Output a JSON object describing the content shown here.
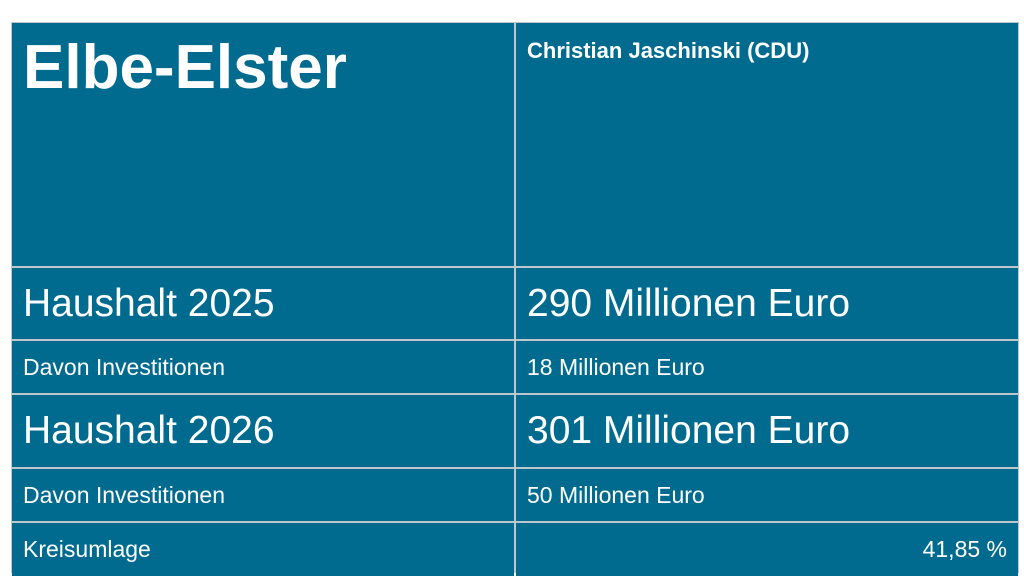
{
  "title": "Elbe-Elster",
  "person": "Christian Jaschinski (CDU)",
  "rows": [
    {
      "label": "Haushalt 2025",
      "value": "290 Millionen Euro"
    },
    {
      "label": "Davon Investitionen",
      "value": "18 Millionen Euro"
    },
    {
      "label": "Haushalt 2026",
      "value": "301 Millionen Euro"
    },
    {
      "label": "Davon Investitionen",
      "value": "50 Millionen Euro"
    },
    {
      "label": "Kreisumlage",
      "value": "41,85 %"
    }
  ],
  "colors": {
    "cell_background": "#006b8f",
    "grid_lines": "#bfc7cc",
    "text": "#ffffff"
  }
}
